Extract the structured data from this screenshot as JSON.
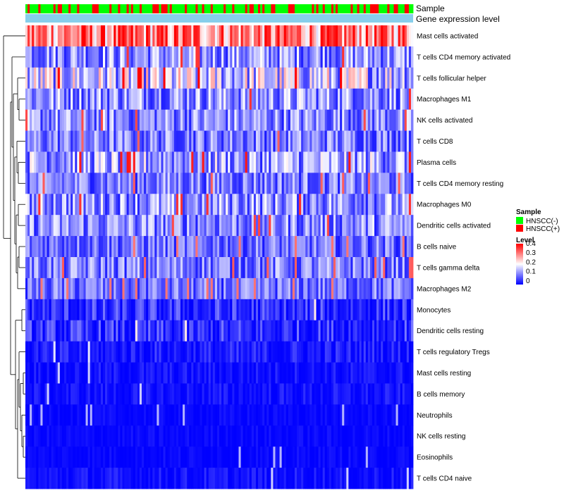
{
  "chart_data": {
    "type": "heatmap",
    "title": "",
    "rows": [
      "Mast cells activated",
      "T cells CD4 memory activated",
      "T cells follicular helper",
      "Macrophages M1",
      "NK cells activated",
      "T cells CD8",
      "Plasma cells",
      "T cells CD4 memory resting",
      "Macrophages M0",
      "Dendritic cells activated",
      "B cells naive",
      "T cells gamma delta",
      "Macrophages M2",
      "Monocytes",
      "Dendritic cells resting",
      "T cells regulatory  Tregs",
      "Mast cells resting",
      "B cells memory",
      "Neutrophils",
      "NK cells resting",
      "Eosinophils",
      "T cells CD4 naive"
    ],
    "row_mean_level": [
      0.3,
      0.12,
      0.16,
      0.12,
      0.11,
      0.1,
      0.13,
      0.1,
      0.12,
      0.11,
      0.09,
      0.1,
      0.09,
      0.05,
      0.05,
      0.03,
      0.02,
      0.02,
      0.01,
      0.01,
      0.01,
      0.02
    ],
    "column_count": 180,
    "annotations": {
      "sample_label": "Sample",
      "expression_label": "Gene expression level"
    },
    "legend": {
      "sample": {
        "title": "Sample",
        "items": [
          {
            "label": "HNSCC(-)",
            "color": "#00FF00"
          },
          {
            "label": "HNSCC(+)",
            "color": "#FF0000"
          }
        ]
      },
      "level": {
        "title": "Level",
        "ticks": [
          "0.4",
          "0.3",
          "0.2",
          "0.1",
          "0"
        ],
        "range": [
          0,
          0.4
        ],
        "colors": [
          "#0000FF",
          "#FFFFFF",
          "#FF0000"
        ]
      }
    },
    "expression_bar_color": "#87CEEB"
  }
}
